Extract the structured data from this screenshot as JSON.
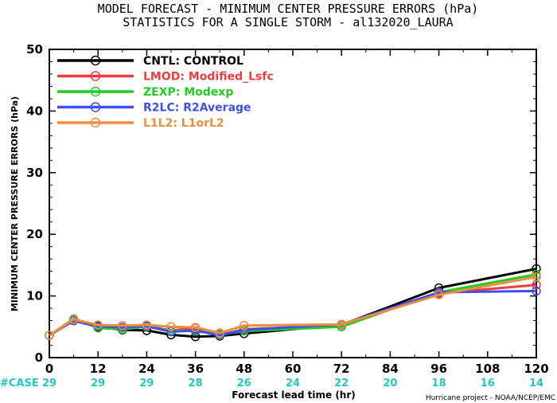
{
  "title_line1": "MODEL FORECAST - MINIMUM CENTER PRESSURE ERRORS (hPa)",
  "title_line2": "STATISTICS FOR A SINGLE STORM - al132020_LAURA",
  "credit": "Hurricane project - NOAA/NCEP/EMC",
  "case_label": "#CASE",
  "colors": {
    "case_text": "#1fc8c8"
  },
  "chart_data": {
    "type": "line",
    "xlabel": "Forecast lead time (hr)",
    "ylabel": "MINIMUM CENTER PRESSURE ERRORS (hPa)",
    "xlim": [
      0,
      120
    ],
    "ylim": [
      0,
      50
    ],
    "xticks": [
      0,
      12,
      24,
      36,
      48,
      60,
      72,
      84,
      96,
      108,
      120
    ],
    "yticks": [
      0,
      10,
      20,
      30,
      40,
      50
    ],
    "legend_position": "top-left",
    "grid": false,
    "cases": [
      {
        "x": 0,
        "n": "29"
      },
      {
        "x": 12,
        "n": "29"
      },
      {
        "x": 24,
        "n": "29"
      },
      {
        "x": 36,
        "n": "28"
      },
      {
        "x": 48,
        "n": "26"
      },
      {
        "x": 60,
        "n": "24"
      },
      {
        "x": 72,
        "n": "22"
      },
      {
        "x": 84,
        "n": "20"
      },
      {
        "x": 96,
        "n": "18"
      },
      {
        "x": 108,
        "n": "16"
      },
      {
        "x": 120,
        "n": "14"
      }
    ],
    "series": [
      {
        "key": "CNTL: ",
        "name": "CONTROL",
        "color": "#000000",
        "x": [
          0,
          6,
          12,
          18,
          24,
          30,
          36,
          42,
          48,
          72,
          96,
          120
        ],
        "y": [
          3.6,
          6.0,
          5.0,
          4.5,
          4.4,
          3.7,
          3.4,
          3.5,
          3.9,
          5.3,
          11.3,
          14.4
        ]
      },
      {
        "key": "LMOD: ",
        "name": "Modified_Lsfc",
        "color": "#f03c3c",
        "x": [
          0,
          6,
          12,
          18,
          24,
          30,
          36,
          42,
          48,
          72,
          96,
          120
        ],
        "y": [
          3.6,
          6.1,
          5.2,
          4.9,
          5.1,
          4.4,
          4.8,
          3.7,
          4.6,
          5.3,
          10.4,
          11.8
        ]
      },
      {
        "key": "ZEXP: ",
        "name": "Modexp",
        "color": "#22cc22",
        "x": [
          0,
          6,
          12,
          18,
          24,
          30,
          36,
          42,
          48,
          72,
          96,
          120
        ],
        "y": [
          3.6,
          6.3,
          4.8,
          4.6,
          5.0,
          4.4,
          4.3,
          3.8,
          4.3,
          5.0,
          10.6,
          13.5
        ]
      },
      {
        "key": "R2LC: ",
        "name": "R2Average",
        "color": "#3c50f0",
        "x": [
          0,
          6,
          12,
          18,
          24,
          30,
          36,
          42,
          48,
          72,
          96,
          120
        ],
        "y": [
          3.6,
          6.0,
          5.1,
          4.9,
          5.1,
          4.2,
          4.4,
          3.6,
          4.5,
          5.4,
          10.6,
          10.8
        ]
      },
      {
        "key": "L1L2: ",
        "name": "L1orL2",
        "color": "#f08c3c",
        "x": [
          0,
          6,
          12,
          18,
          24,
          30,
          36,
          42,
          48,
          72,
          96,
          120
        ],
        "y": [
          3.6,
          6.2,
          5.3,
          5.2,
          5.3,
          5.0,
          4.9,
          4.0,
          5.2,
          5.4,
          10.2,
          13.1
        ]
      }
    ]
  }
}
